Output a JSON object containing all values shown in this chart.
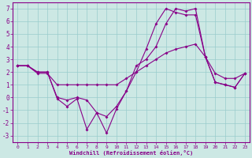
{
  "xlabel": "Windchill (Refroidissement éolien,°C)",
  "background_color": "#cce8e4",
  "line_color": "#880088",
  "grid_color": "#99cccc",
  "xlim": [
    -0.5,
    23.5
  ],
  "ylim": [
    -3.5,
    7.5
  ],
  "yticks": [
    -3,
    -2,
    -1,
    0,
    1,
    2,
    3,
    4,
    5,
    6,
    7
  ],
  "xticks": [
    0,
    1,
    2,
    3,
    4,
    5,
    6,
    7,
    8,
    9,
    10,
    11,
    12,
    13,
    14,
    15,
    16,
    17,
    18,
    19,
    20,
    21,
    22,
    23
  ],
  "series": [
    [
      2.5,
      2.5,
      2.0,
      2.0,
      0.0,
      -0.2,
      0.0,
      -0.2,
      -1.2,
      -2.8,
      -0.9,
      0.5,
      2.0,
      3.8,
      5.8,
      7.0,
      6.7,
      6.5,
      6.5,
      3.2,
      1.2,
      1.0,
      0.8,
      1.9
    ],
    [
      2.5,
      2.5,
      1.9,
      1.9,
      1.0,
      1.0,
      1.0,
      1.0,
      1.0,
      1.0,
      1.0,
      1.5,
      2.0,
      2.5,
      3.0,
      3.5,
      3.8,
      4.0,
      4.2,
      3.2,
      1.9,
      1.5,
      1.5,
      1.9
    ],
    [
      2.5,
      2.5,
      2.0,
      2.0,
      -0.1,
      -0.7,
      -0.1,
      -2.5,
      -1.2,
      -1.5,
      -0.7,
      0.5,
      2.5,
      3.0,
      4.0,
      5.8,
      7.0,
      6.8,
      7.0,
      3.2,
      1.2,
      1.0,
      0.8,
      1.9
    ]
  ]
}
